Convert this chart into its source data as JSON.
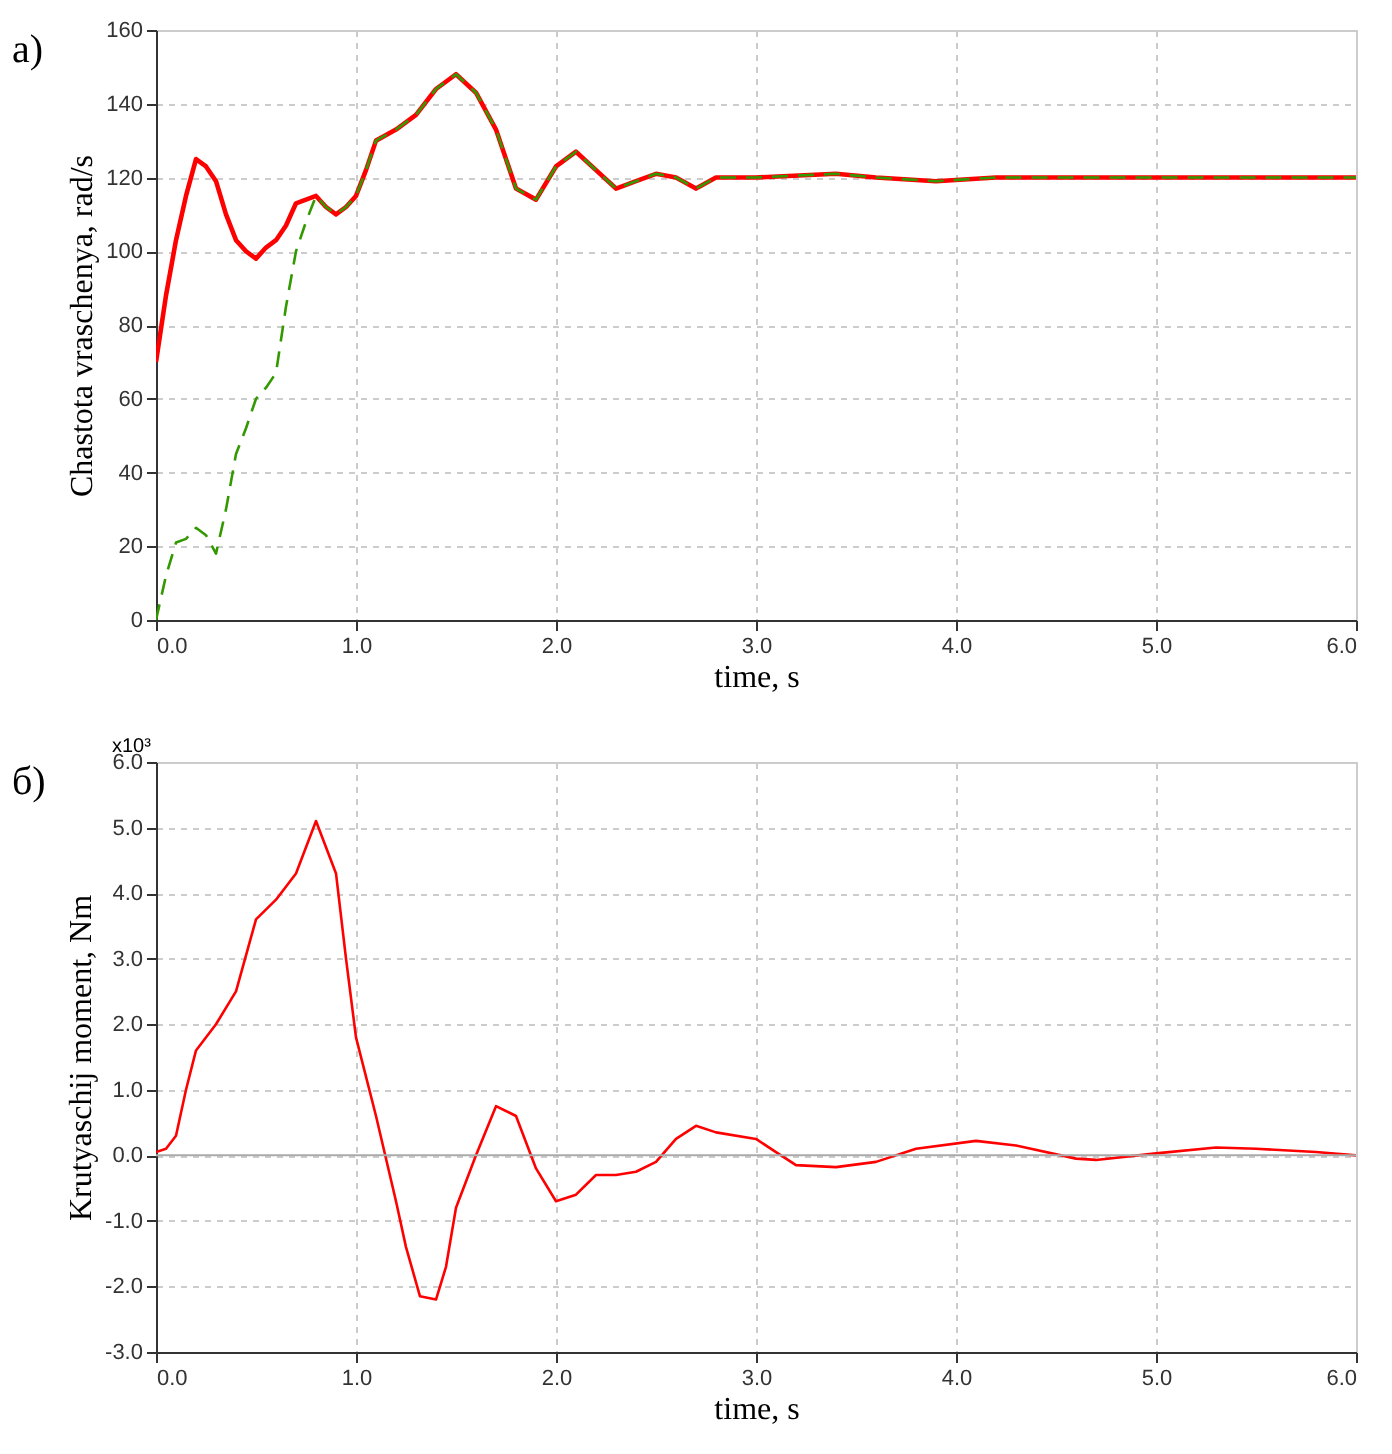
{
  "chart_data": [
    {
      "type": "line",
      "xlabel": "time, s",
      "ylabel": "Chastota vraschenya, rad/s",
      "annotations": [
        "а)"
      ],
      "xlim": [
        0,
        6
      ],
      "xticks": [
        {
          "value": 0,
          "label": "0.0"
        },
        {
          "value": 1,
          "label": "1.0"
        },
        {
          "value": 2,
          "label": "2.0"
        },
        {
          "value": 3,
          "label": "3.0"
        },
        {
          "value": 4,
          "label": "4.0"
        },
        {
          "value": 5,
          "label": "5.0"
        },
        {
          "value": 6,
          "label": "6.0"
        }
      ],
      "ylim": [
        0,
        160
      ],
      "yticks": [
        0,
        20,
        40,
        60,
        80,
        100,
        120,
        140,
        160
      ],
      "grid": true,
      "series": [
        {
          "color": "#ff0000",
          "line_style": "solid",
          "x": [
            0,
            0.05,
            0.1,
            0.15,
            0.2,
            0.25,
            0.3,
            0.35,
            0.4,
            0.45,
            0.5,
            0.55,
            0.6,
            0.65,
            0.7,
            0.75,
            0.8,
            0.85,
            0.9,
            0.95,
            1.0,
            1.05,
            1.1,
            1.2,
            1.3,
            1.4,
            1.5,
            1.6,
            1.7,
            1.8,
            1.9,
            2.0,
            2.1,
            2.2,
            2.3,
            2.4,
            2.5,
            2.6,
            2.7,
            2.8,
            3.0,
            3.4,
            3.6,
            3.9,
            4.2,
            6.0
          ],
          "values": [
            70,
            88,
            103,
            115,
            125,
            123,
            119,
            110,
            103,
            100,
            98,
            101,
            103,
            107,
            113,
            114,
            115,
            112,
            110,
            112,
            115,
            122,
            130,
            133,
            137,
            144,
            148,
            143,
            133,
            117,
            114,
            123,
            127,
            122,
            117,
            119,
            121,
            120,
            117,
            120,
            120,
            121,
            120,
            119,
            120,
            120
          ]
        },
        {
          "color": "#339900",
          "line_style": "dashed",
          "x": [
            0,
            0.05,
            0.1,
            0.15,
            0.2,
            0.25,
            0.3,
            0.35,
            0.4,
            0.45,
            0.5,
            0.55,
            0.6,
            0.65,
            0.7,
            0.75,
            0.8,
            0.85,
            0.9,
            0.95,
            1.0,
            1.05,
            1.1,
            1.2,
            1.3,
            1.4,
            1.5,
            1.6,
            1.7,
            1.8,
            1.9,
            2.0,
            2.1,
            2.2,
            2.3,
            2.4,
            2.5,
            2.6,
            2.7,
            2.8,
            3.0,
            3.4,
            3.6,
            3.9,
            4.2,
            6.0
          ],
          "values": [
            0,
            12,
            21,
            22,
            25,
            23,
            18,
            30,
            45,
            52,
            60,
            63,
            67,
            85,
            100,
            108,
            115,
            112,
            110,
            112,
            115,
            122,
            130,
            133,
            137,
            144,
            148,
            143,
            133,
            117,
            114,
            123,
            127,
            122,
            117,
            119,
            121,
            120,
            117,
            120,
            120,
            121,
            120,
            119,
            120,
            120
          ]
        }
      ]
    },
    {
      "type": "line",
      "xlabel": "time, s",
      "ylabel": "Krutyaschij moment, Nm",
      "annotations": [
        "б)",
        "x10³"
      ],
      "xlim": [
        0,
        6
      ],
      "xticks": [
        {
          "value": 0,
          "label": "0.0"
        },
        {
          "value": 1,
          "label": "1.0"
        },
        {
          "value": 2,
          "label": "2.0"
        },
        {
          "value": 3,
          "label": "3.0"
        },
        {
          "value": 4,
          "label": "4.0"
        },
        {
          "value": 5,
          "label": "5.0"
        },
        {
          "value": 6,
          "label": "6.0"
        }
      ],
      "ylim": [
        -3,
        6
      ],
      "yticks": [
        {
          "value": -3,
          "label": "-3.0"
        },
        {
          "value": -2,
          "label": "-2.0"
        },
        {
          "value": -1,
          "label": "-1.0"
        },
        {
          "value": 0,
          "label": "0.0"
        },
        {
          "value": 1,
          "label": "1.0"
        },
        {
          "value": 2,
          "label": "2.0"
        },
        {
          "value": 3,
          "label": "3.0"
        },
        {
          "value": 4,
          "label": "4.0"
        },
        {
          "value": 5,
          "label": "5.0"
        },
        {
          "value": 6,
          "label": "6.0"
        }
      ],
      "grid": true,
      "ref_lines": [
        {
          "axis": "y",
          "value": 0,
          "color": "#aaaaaa",
          "line_style": "solid"
        }
      ],
      "series": [
        {
          "color": "#ff0000",
          "line_style": "solid",
          "x": [
            0,
            0.05,
            0.1,
            0.15,
            0.2,
            0.3,
            0.4,
            0.5,
            0.6,
            0.7,
            0.8,
            0.85,
            0.9,
            0.95,
            1.0,
            1.1,
            1.2,
            1.25,
            1.32,
            1.4,
            1.45,
            1.5,
            1.6,
            1.7,
            1.8,
            1.9,
            2.0,
            2.1,
            2.2,
            2.3,
            2.4,
            2.5,
            2.6,
            2.7,
            2.8,
            3.0,
            3.1,
            3.2,
            3.4,
            3.6,
            3.8,
            4.1,
            4.3,
            4.6,
            4.7,
            5.0,
            5.3,
            5.5,
            5.8,
            6.0
          ],
          "values": [
            0.05,
            0.1,
            0.3,
            1.0,
            1.6,
            2.0,
            2.5,
            3.6,
            3.9,
            4.3,
            5.1,
            4.7,
            4.3,
            3.0,
            1.8,
            0.6,
            -0.7,
            -1.4,
            -2.15,
            -2.2,
            -1.7,
            -0.8,
            0.0,
            0.75,
            0.6,
            -0.2,
            -0.7,
            -0.6,
            -0.3,
            -0.3,
            -0.25,
            -0.1,
            0.25,
            0.45,
            0.35,
            0.25,
            0.05,
            -0.15,
            -0.18,
            -0.1,
            0.1,
            0.22,
            0.15,
            -0.05,
            -0.07,
            0.03,
            0.12,
            0.1,
            0.05,
            0.0
          ]
        }
      ]
    }
  ]
}
